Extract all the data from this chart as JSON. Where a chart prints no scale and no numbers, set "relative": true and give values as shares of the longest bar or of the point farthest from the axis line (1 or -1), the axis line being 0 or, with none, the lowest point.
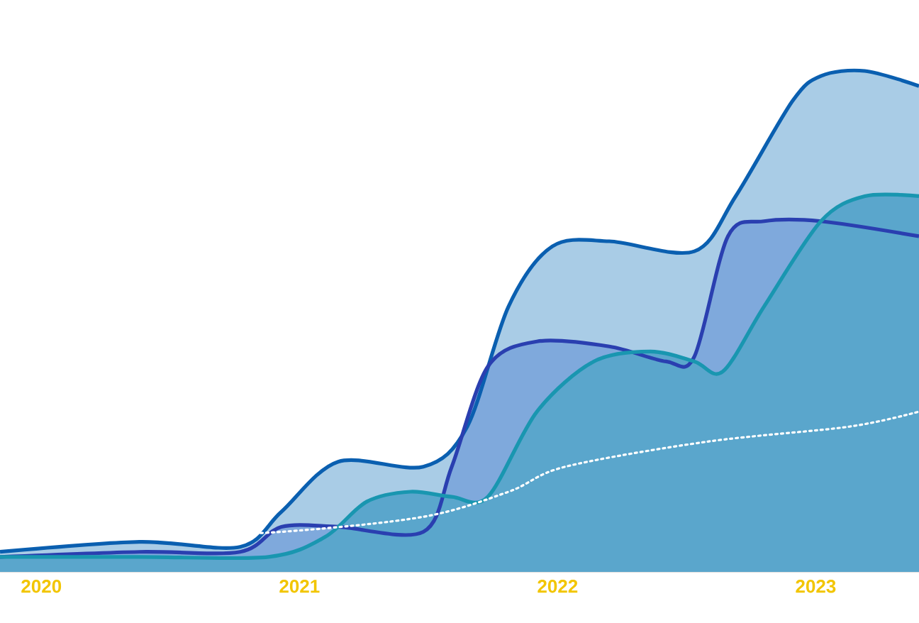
{
  "chart_data": {
    "type": "area",
    "relative": true,
    "xlim": [
      2019.84,
      2023.4
    ],
    "xticks": [
      2020,
      2021,
      2022,
      2023
    ],
    "series": [
      {
        "color": "#a9cce6",
        "x": [
          2019.84,
          2020.38,
          2020.77,
          2020.93,
          2021.15,
          2021.48,
          2021.65,
          2021.81,
          2021.98,
          2022.2,
          2022.53,
          2022.69,
          2022.91,
          2023.02,
          2023.19,
          2023.4
        ],
        "values": [
          0.04,
          0.06,
          0.05,
          0.12,
          0.22,
          0.21,
          0.29,
          0.53,
          0.65,
          0.66,
          0.64,
          0.75,
          0.94,
          0.99,
          1.0,
          0.97
        ]
      },
      {
        "color": "#7fa9dc",
        "x": [
          2019.84,
          2020.38,
          2020.77,
          2020.93,
          2021.15,
          2021.48,
          2021.59,
          2021.73,
          2021.92,
          2022.2,
          2022.42,
          2022.53,
          2022.66,
          2022.8,
          2023.02,
          2023.4
        ],
        "values": [
          0.03,
          0.04,
          0.04,
          0.09,
          0.09,
          0.08,
          0.21,
          0.41,
          0.46,
          0.45,
          0.42,
          0.43,
          0.67,
          0.7,
          0.7,
          0.67
        ]
      },
      {
        "color": "#5aa6cc",
        "x": [
          2019.84,
          2020.38,
          2020.88,
          2021.1,
          2021.26,
          2021.43,
          2021.59,
          2021.73,
          2021.92,
          2022.14,
          2022.36,
          2022.53,
          2022.64,
          2022.8,
          2023.02,
          2023.19,
          2023.4
        ],
        "values": [
          0.03,
          0.03,
          0.03,
          0.07,
          0.14,
          0.16,
          0.15,
          0.15,
          0.32,
          0.42,
          0.44,
          0.42,
          0.4,
          0.53,
          0.7,
          0.75,
          0.75
        ]
      },
      {
        "type": "line",
        "line_style": "dotted",
        "color": "#ffffff",
        "x": [
          2019.84,
          2020.38,
          2020.93,
          2021.48,
          2021.81,
          2022.03,
          2022.58,
          2023.13,
          2023.4
        ],
        "values": [
          0.05,
          0.07,
          0.08,
          0.11,
          0.16,
          0.21,
          0.26,
          0.29,
          0.32
        ]
      }
    ]
  }
}
